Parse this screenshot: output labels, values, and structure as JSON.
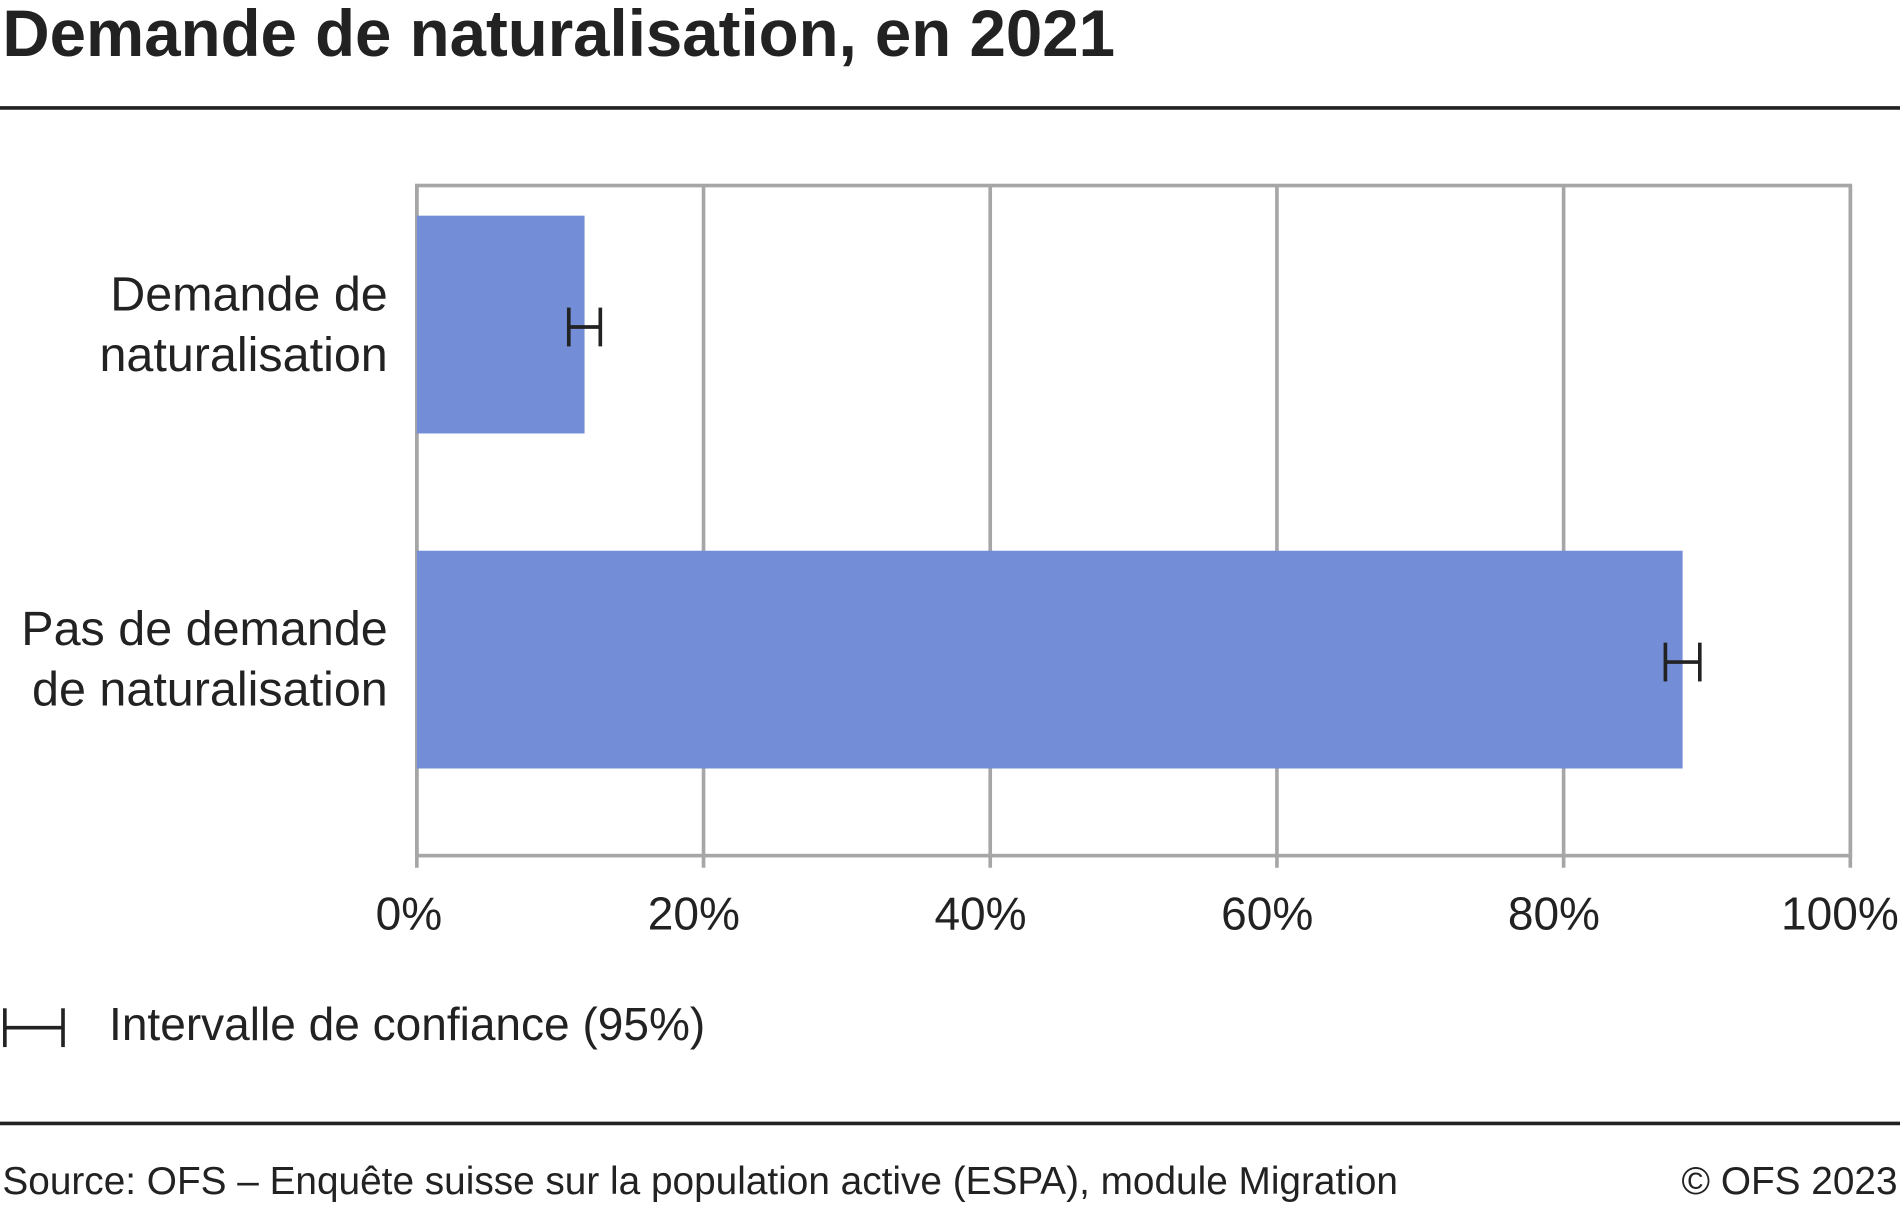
{
  "chart_data": {
    "type": "bar",
    "orientation": "horizontal",
    "title": "Demande de naturalisation, en 2021",
    "categories": [
      "Demande de naturalisation",
      "Pas de demande de naturalisation"
    ],
    "values": [
      11.7,
      88.3
    ],
    "errors": [
      1.1,
      1.2
    ],
    "color": "#738dd6",
    "error_color": "#222222",
    "xlim": [
      0,
      100
    ],
    "xticks": [
      {
        "value": 0,
        "label": "0%"
      },
      {
        "value": 20,
        "label": "20%"
      },
      {
        "value": 40,
        "label": "40%"
      },
      {
        "value": 60,
        "label": "60%"
      },
      {
        "value": 80,
        "label": "80%"
      },
      {
        "value": 100,
        "label": "100%"
      }
    ],
    "grid": true,
    "legend": "Intervalle de confiance (95%)",
    "source": "Source: OFS – Enquête suisse sur la population active (ESPA), module Migration",
    "copyright": "© OFS 2023"
  }
}
